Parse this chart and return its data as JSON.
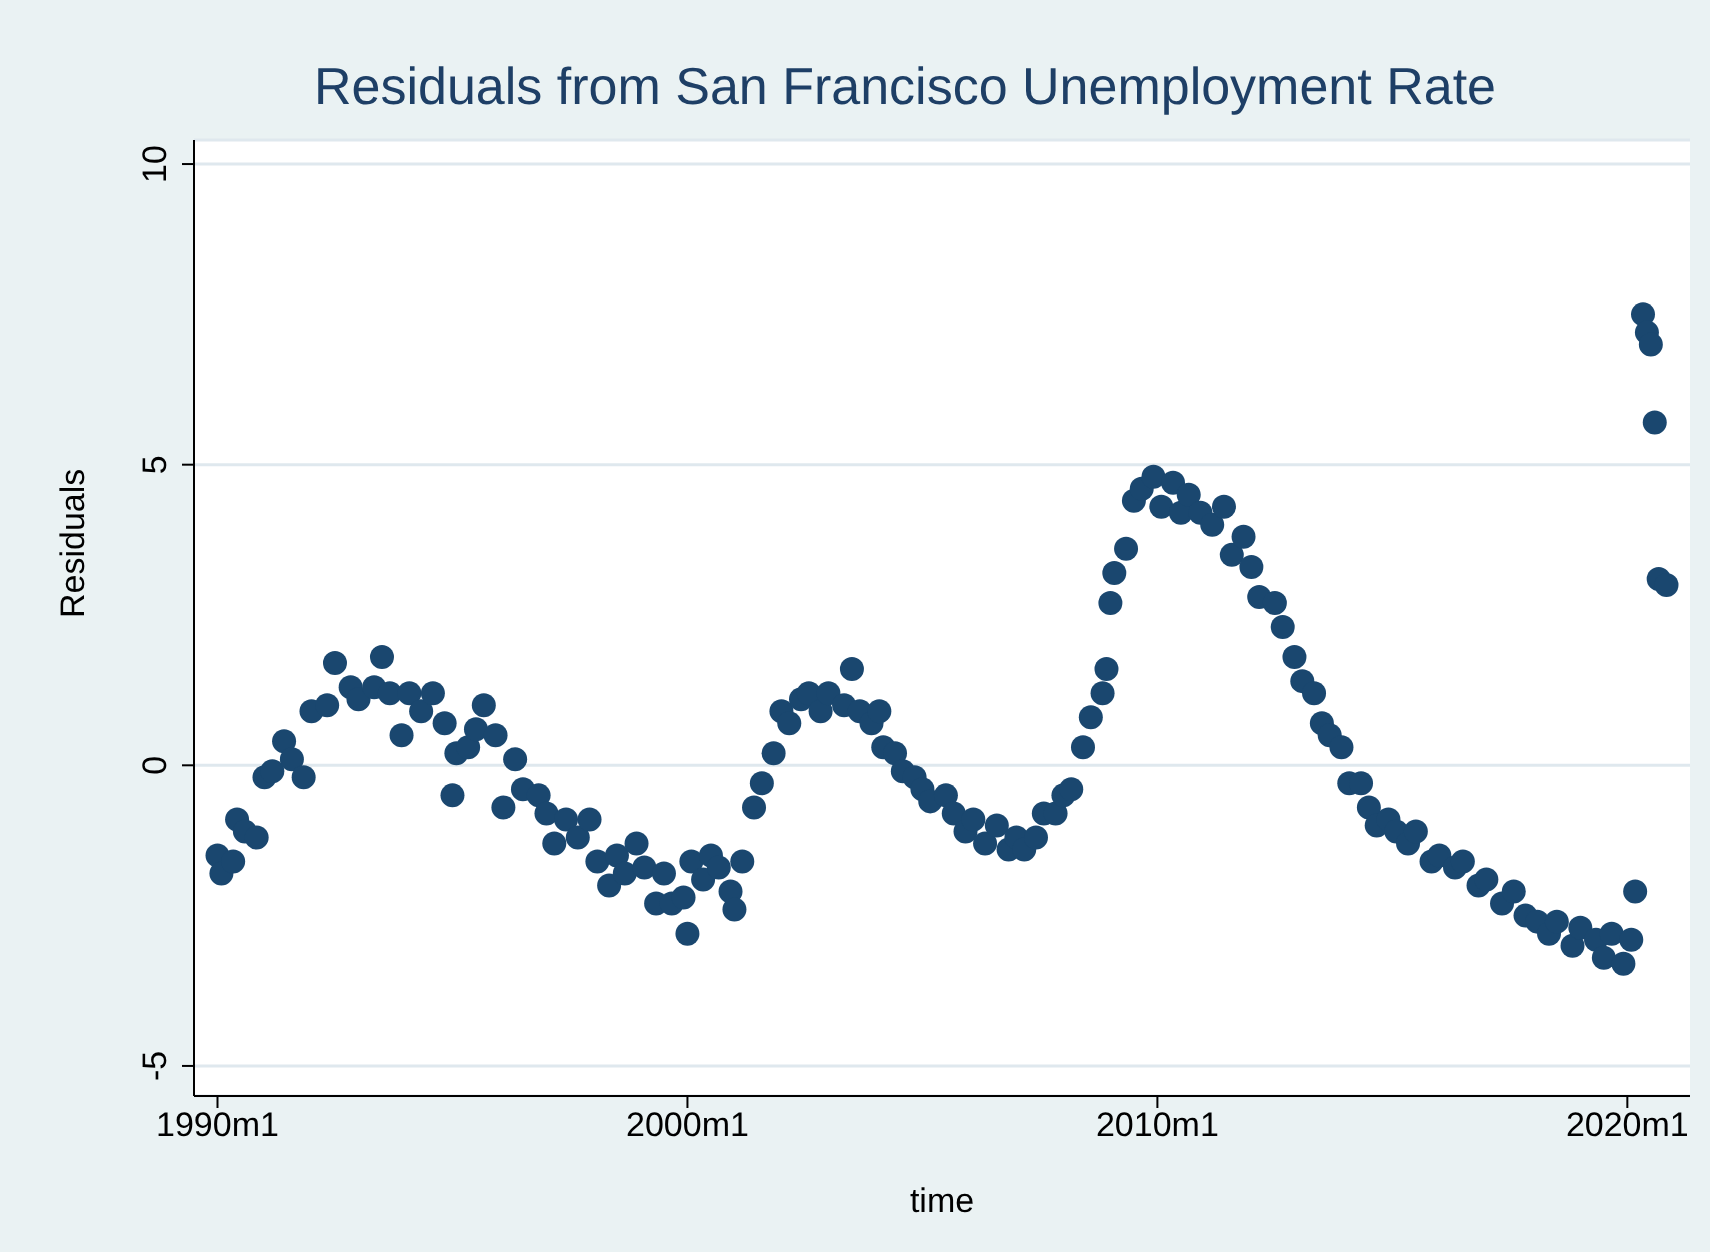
{
  "chart_data": {
    "type": "scatter",
    "title": "Residuals from San Francisco Unemployment Rate",
    "xlabel": "time",
    "ylabel": "Residuals",
    "xlim": [
      "1989-07",
      "2021-05"
    ],
    "ylim": [
      -5.5,
      10.4
    ],
    "xticks": [
      {
        "value": "1990-01",
        "label": "1990m1"
      },
      {
        "value": "2000-01",
        "label": "2000m1"
      },
      {
        "value": "2010-01",
        "label": "2010m1"
      },
      {
        "value": "2020-01",
        "label": "2020m1"
      }
    ],
    "yticks": [
      -5,
      0,
      5,
      10
    ],
    "grid": "y",
    "marker": "circle",
    "series": [
      {
        "color": "#1a476f",
        "x": [
          "1990-01",
          "1990-02",
          "1990-05",
          "1990-06",
          "1990-08",
          "1990-11",
          "1991-01",
          "1991-03",
          "1991-06",
          "1991-08",
          "1991-11",
          "1992-01",
          "1992-05",
          "1992-07",
          "1992-11",
          "1993-01",
          "1993-05",
          "1993-07",
          "1993-09",
          "1993-12",
          "1994-02",
          "1994-05",
          "1994-08",
          "1994-11",
          "1995-01",
          "1995-02",
          "1995-05",
          "1995-07",
          "1995-09",
          "1995-12",
          "1996-02",
          "1996-05",
          "1996-07",
          "1996-11",
          "1997-01",
          "1997-03",
          "1997-06",
          "1997-09",
          "1997-12",
          "1998-02",
          "1998-05",
          "1998-07",
          "1998-09",
          "1998-12",
          "1999-02",
          "1999-05",
          "1999-07",
          "1999-09",
          "1999-12",
          "2000-01",
          "2000-02",
          "2000-05",
          "2000-07",
          "2000-09",
          "2000-12",
          "2001-01",
          "2001-03",
          "2001-06",
          "2001-08",
          "2001-11",
          "2002-01",
          "2002-03",
          "2002-06",
          "2002-08",
          "2002-11",
          "2003-01",
          "2003-05",
          "2003-07",
          "2003-09",
          "2003-12",
          "2004-02",
          "2004-03",
          "2004-06",
          "2004-08",
          "2004-11",
          "2005-01",
          "2005-03",
          "2005-07",
          "2005-09",
          "2005-12",
          "2006-02",
          "2006-05",
          "2006-08",
          "2006-11",
          "2007-01",
          "2007-03",
          "2007-06",
          "2007-08",
          "2007-11",
          "2008-01",
          "2008-03",
          "2008-06",
          "2008-08",
          "2008-11",
          "2008-12",
          "2009-01",
          "2009-02",
          "2009-05",
          "2009-07",
          "2009-09",
          "2009-12",
          "2010-02",
          "2010-05",
          "2010-07",
          "2010-09",
          "2010-12",
          "2011-03",
          "2011-06",
          "2011-08",
          "2011-11",
          "2012-01",
          "2012-03",
          "2012-07",
          "2012-09",
          "2012-12",
          "2013-02",
          "2013-05",
          "2013-07",
          "2013-09",
          "2013-12",
          "2014-02",
          "2014-05",
          "2014-07",
          "2014-09",
          "2014-12",
          "2015-02",
          "2015-05",
          "2015-07",
          "2015-11",
          "2016-01",
          "2016-05",
          "2016-07",
          "2016-11",
          "2017-01",
          "2017-05",
          "2017-08",
          "2017-11",
          "2018-02",
          "2018-05",
          "2018-07",
          "2018-11",
          "2019-01",
          "2019-05",
          "2019-07",
          "2019-09",
          "2019-12",
          "2020-02",
          "2020-03",
          "2020-05",
          "2020-06",
          "2020-07",
          "2020-08",
          "2020-09",
          "2020-11"
        ],
        "values": [
          -1.5,
          -1.8,
          -1.6,
          -0.9,
          -1.1,
          -1.2,
          -0.2,
          -0.1,
          0.4,
          0.1,
          -0.2,
          0.9,
          1.0,
          1.7,
          1.3,
          1.1,
          1.3,
          1.8,
          1.2,
          0.5,
          1.2,
          0.9,
          1.2,
          0.7,
          -0.5,
          0.2,
          0.3,
          0.6,
          1.0,
          0.5,
          -0.7,
          0.1,
          -0.4,
          -0.5,
          -0.8,
          -1.3,
          -0.9,
          -1.2,
          -0.9,
          -1.6,
          -2.0,
          -1.5,
          -1.8,
          -1.3,
          -1.7,
          -2.3,
          -1.8,
          -2.3,
          -2.2,
          -2.8,
          -1.6,
          -1.9,
          -1.5,
          -1.7,
          -2.1,
          -2.4,
          -1.6,
          -0.7,
          -0.3,
          0.2,
          0.9,
          0.7,
          1.1,
          1.2,
          0.9,
          1.2,
          1.0,
          1.6,
          0.9,
          0.7,
          0.9,
          0.3,
          0.2,
          -0.1,
          -0.2,
          -0.4,
          -0.6,
          -0.5,
          -0.8,
          -1.1,
          -0.9,
          -1.3,
          -1.0,
          -1.4,
          -1.2,
          -1.4,
          -1.2,
          -0.8,
          -0.8,
          -0.5,
          -0.4,
          0.3,
          0.8,
          1.2,
          1.6,
          2.7,
          3.2,
          3.6,
          4.4,
          4.6,
          4.8,
          4.3,
          4.7,
          4.2,
          4.5,
          4.2,
          4.0,
          4.3,
          3.5,
          3.8,
          3.3,
          2.8,
          2.7,
          2.3,
          1.8,
          1.4,
          1.2,
          0.7,
          0.5,
          0.3,
          -0.3,
          -0.3,
          -0.7,
          -1.0,
          -0.9,
          -1.1,
          -1.3,
          -1.1,
          -1.6,
          -1.5,
          -1.7,
          -1.6,
          -2.0,
          -1.9,
          -2.3,
          -2.1,
          -2.5,
          -2.6,
          -2.8,
          -2.6,
          -3.0,
          -2.7,
          -2.9,
          -3.2,
          -2.8,
          -3.3,
          -2.9,
          -2.1,
          7.5,
          7.2,
          7.0,
          5.7,
          3.1,
          3.0
        ]
      }
    ]
  }
}
